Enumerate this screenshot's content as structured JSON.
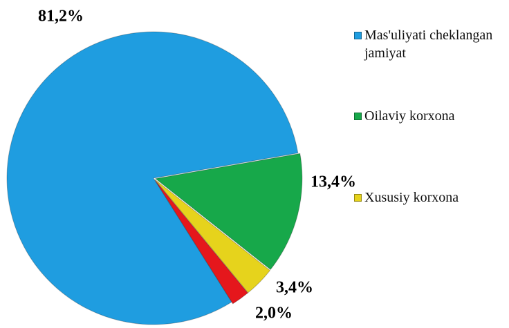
{
  "chart_data": {
    "type": "pie",
    "categories": [
      "Mas'uliyati cheklangan jamiyat",
      "Oilaviy korxona",
      "Xususiy korxona",
      null
    ],
    "values": [
      81.2,
      13.4,
      3.4,
      2.0
    ],
    "value_labels": [
      "81,2%",
      "13,4%",
      "3,4%",
      "2,0%"
    ],
    "colors": [
      "#1f9de0",
      "#17a84a",
      "#e6d31c",
      "#e5171c"
    ]
  }
}
